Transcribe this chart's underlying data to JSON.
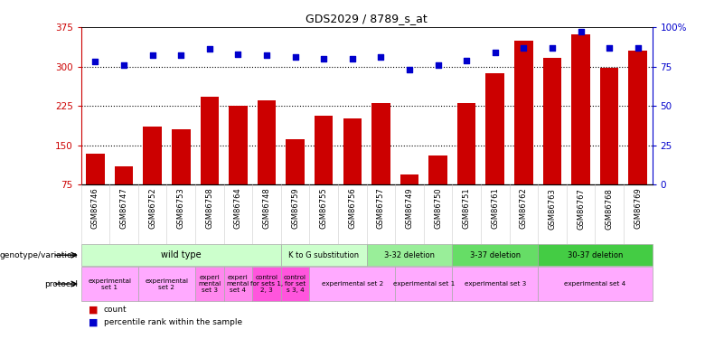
{
  "title": "GDS2029 / 8789_s_at",
  "samples": [
    "GSM86746",
    "GSM86747",
    "GSM86752",
    "GSM86753",
    "GSM86758",
    "GSM86764",
    "GSM86748",
    "GSM86759",
    "GSM86755",
    "GSM86756",
    "GSM86757",
    "GSM86749",
    "GSM86750",
    "GSM86751",
    "GSM86761",
    "GSM86762",
    "GSM86763",
    "GSM86767",
    "GSM86768",
    "GSM86769"
  ],
  "counts": [
    135,
    110,
    185,
    180,
    242,
    225,
    235,
    162,
    207,
    202,
    230,
    95,
    130,
    230,
    287,
    350,
    317,
    362,
    297,
    330
  ],
  "percentiles": [
    78,
    76,
    82,
    82,
    86,
    83,
    82,
    81,
    80,
    80,
    81,
    73,
    76,
    79,
    84,
    87,
    87,
    97,
    87,
    87
  ],
  "bar_color": "#cc0000",
  "dot_color": "#0000cc",
  "ylim_left": [
    75,
    375
  ],
  "ylim_right": [
    0,
    100
  ],
  "yticks_left": [
    75,
    150,
    225,
    300,
    375
  ],
  "yticks_right": [
    0,
    25,
    50,
    75,
    100
  ],
  "ytick_labels_right": [
    "0",
    "25",
    "50",
    "75",
    "100%"
  ],
  "hlines": [
    150,
    225,
    300
  ],
  "genotype_groups": [
    {
      "label": "wild type",
      "start": 0,
      "end": 7,
      "color": "#ccffcc"
    },
    {
      "label": "K to G substitution",
      "start": 7,
      "end": 10,
      "color": "#ccffcc"
    },
    {
      "label": "3-32 deletion",
      "start": 10,
      "end": 13,
      "color": "#99ee99"
    },
    {
      "label": "3-37 deletion",
      "start": 13,
      "end": 16,
      "color": "#66dd66"
    },
    {
      "label": "30-37 deletion",
      "start": 16,
      "end": 20,
      "color": "#44cc44"
    }
  ],
  "protocol_groups": [
    {
      "label": "experimental\nset 1",
      "start": 0,
      "end": 2,
      "color": "#ffaaff"
    },
    {
      "label": "experimental\nset 2",
      "start": 2,
      "end": 4,
      "color": "#ffaaff"
    },
    {
      "label": "experi\nmental\nset 3",
      "start": 4,
      "end": 5,
      "color": "#ff88ee"
    },
    {
      "label": "experi\nmental\nset 4",
      "start": 5,
      "end": 6,
      "color": "#ff88ee"
    },
    {
      "label": "control\nfor sets 1,\n2, 3",
      "start": 6,
      "end": 7,
      "color": "#ff55dd"
    },
    {
      "label": "control\nfor set\ns 3, 4",
      "start": 7,
      "end": 8,
      "color": "#ff55dd"
    },
    {
      "label": "experimental set 2",
      "start": 8,
      "end": 11,
      "color": "#ffaaff"
    },
    {
      "label": "experimental set 1",
      "start": 11,
      "end": 13,
      "color": "#ffaaff"
    },
    {
      "label": "experimental set 3",
      "start": 13,
      "end": 16,
      "color": "#ffaaff"
    },
    {
      "label": "experimental set 4",
      "start": 16,
      "end": 20,
      "color": "#ffaaff"
    }
  ],
  "bg_color": "#ffffff",
  "left_axis_color": "#cc0000",
  "right_axis_color": "#0000cc",
  "left_label": "genotype/variation",
  "right_label": "protocol",
  "legend_count": "count",
  "legend_pct": "percentile rank within the sample"
}
